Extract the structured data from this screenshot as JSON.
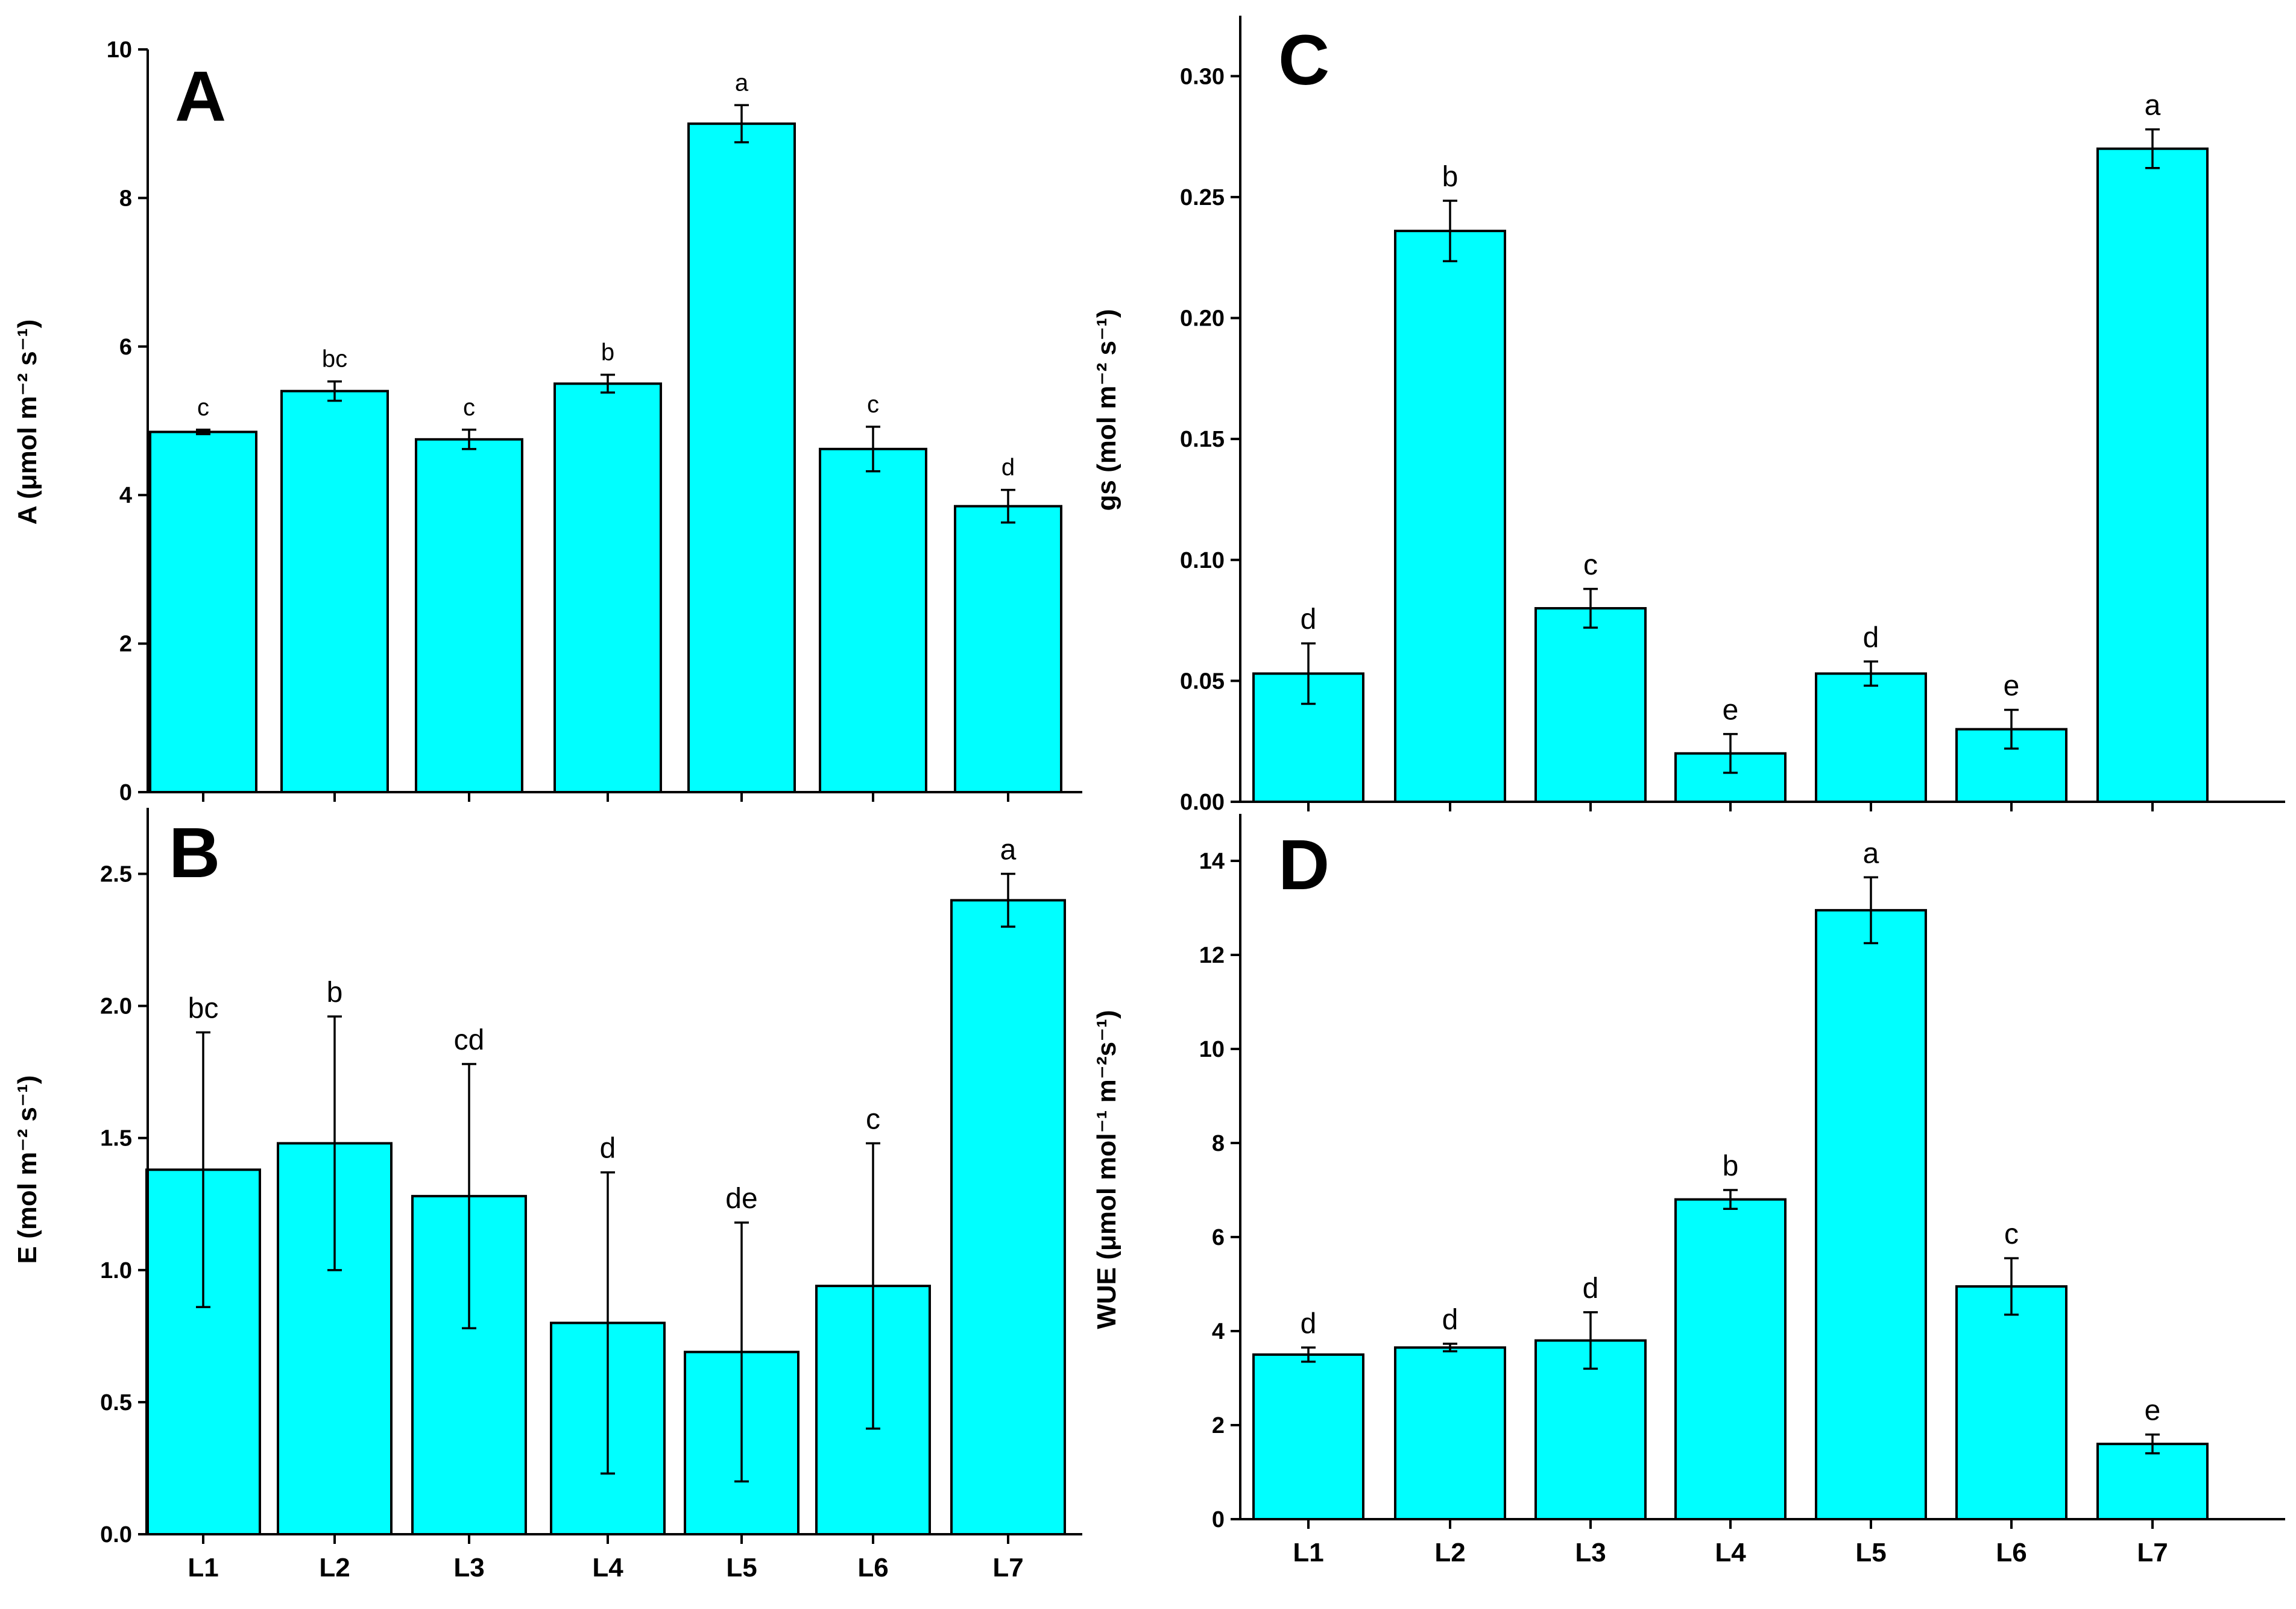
{
  "colors": {
    "bar": "#00FFFF",
    "stroke": "#000000"
  },
  "chart_data": [
    {
      "id": "A",
      "type": "bar",
      "title": "A",
      "ylabel": "A (μmol m⁻² s⁻¹)",
      "xlabel": "",
      "categories": [
        "L1",
        "L2",
        "L3",
        "L4",
        "L5",
        "L6",
        "L7"
      ],
      "values": [
        4.85,
        5.4,
        4.75,
        5.5,
        9.0,
        4.62,
        3.85
      ],
      "errors": [
        0.03,
        0.13,
        0.13,
        0.12,
        0.25,
        0.3,
        0.22
      ],
      "significance": [
        "c",
        "bc",
        "c",
        "b",
        "a",
        "c",
        "d"
      ],
      "ylim": [
        0,
        10
      ],
      "yticks": [
        0,
        2,
        4,
        6,
        8,
        10
      ],
      "ytick_labels": [
        "0",
        "2",
        "4",
        "6",
        "8",
        "10"
      ],
      "show_x_labels": false,
      "grid": false
    },
    {
      "id": "B",
      "type": "bar",
      "title": "B",
      "ylabel": "E (mol m⁻² s⁻¹)",
      "xlabel": "",
      "categories": [
        "L1",
        "L2",
        "L3",
        "L4",
        "L5",
        "L6",
        "L7"
      ],
      "values": [
        1.38,
        1.48,
        1.28,
        0.8,
        0.69,
        0.94,
        2.4
      ],
      "errors": [
        0.52,
        0.48,
        0.5,
        0.57,
        0.49,
        0.54,
        0.1
      ],
      "significance": [
        "bc",
        "b",
        "cd",
        "d",
        "de",
        "c",
        "a"
      ],
      "ylim": [
        0,
        2.75
      ],
      "yticks": [
        0,
        0.5,
        1.0,
        1.5,
        2.0,
        2.5
      ],
      "ytick_labels": [
        "0.0",
        "0.5",
        "1.0",
        "1.5",
        "2.0",
        "2.5"
      ],
      "show_x_labels": true,
      "grid": false
    },
    {
      "id": "C",
      "type": "bar",
      "title": "C",
      "ylabel": "gs (mol m⁻² s⁻¹)",
      "xlabel": "",
      "categories": [
        "L1",
        "L2",
        "L3",
        "L4",
        "L5",
        "L6",
        "L7"
      ],
      "values": [
        0.053,
        0.236,
        0.08,
        0.02,
        0.053,
        0.03,
        0.27
      ],
      "errors": [
        0.0125,
        0.0125,
        0.008,
        0.008,
        0.005,
        0.008,
        0.008
      ],
      "significance": [
        "d",
        "b",
        "c",
        "e",
        "d",
        "e",
        "a"
      ],
      "ylim": [
        0,
        0.325
      ],
      "yticks": [
        0,
        0.05,
        0.1,
        0.15,
        0.2,
        0.25,
        0.3
      ],
      "ytick_labels": [
        "0.00",
        "0.05",
        "0.10",
        "0.15",
        "0.20",
        "0.25",
        "0.30"
      ],
      "show_x_labels": false,
      "grid": false
    },
    {
      "id": "D",
      "type": "bar",
      "title": "D",
      "ylabel": "WUE (μmol mol⁻¹ m⁻²s⁻¹)",
      "xlabel": "",
      "categories": [
        "L1",
        "L2",
        "L3",
        "L4",
        "L5",
        "L6",
        "L7"
      ],
      "values": [
        3.5,
        3.65,
        3.8,
        6.8,
        12.95,
        4.95,
        1.6
      ],
      "errors": [
        0.15,
        0.08,
        0.6,
        0.2,
        0.7,
        0.6,
        0.2
      ],
      "significance": [
        "d",
        "d",
        "d",
        "b",
        "a",
        "c",
        "e"
      ],
      "ylim": [
        0,
        15
      ],
      "yticks": [
        0,
        2,
        4,
        6,
        8,
        10,
        12,
        14
      ],
      "ytick_labels": [
        "0",
        "2",
        "4",
        "6",
        "8",
        "10",
        "12",
        "14"
      ],
      "show_x_labels": true,
      "grid": false
    }
  ]
}
